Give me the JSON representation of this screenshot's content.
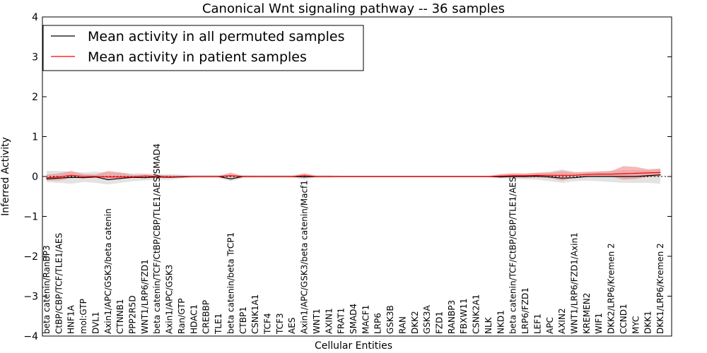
{
  "chart_data": {
    "type": "line",
    "title": "Canonical Wnt signaling pathway -- 36 samples",
    "xlabel": "Cellular Entities",
    "ylabel": "Inferred Activity",
    "ylim": [
      -4,
      4
    ],
    "yticks": [
      "−4",
      "−3",
      "−2",
      "−1",
      "0",
      "1",
      "2",
      "3",
      "4"
    ],
    "ytick_values": [
      -4,
      -3,
      -2,
      -1,
      0,
      1,
      2,
      3,
      4
    ],
    "legend_position": "top-left",
    "categories": [
      "beta catenin/RanBP3",
      "CtBP/CBP/TCF/TLE1/AES",
      "HNF1A",
      "mol:GTP",
      "DVL1",
      "Axin1/APC/GSK3/beta catenin",
      "CTNNB1",
      "PPP2R5D",
      "WNT1/LRP6/FZD1",
      "beta catenin/TCF/CtBP/CBP/TLE1/AES/SMAD4",
      "Axin1/APC/GSK3",
      "Ran/GTP",
      "HDAC1",
      "CREBBP",
      "TLE1",
      "beta catenin/beta TrCP1",
      "CTBP1",
      "CSNK1A1",
      "TCF4",
      "TCF3",
      "AES",
      "Axin1/APC/GSK3/beta catenin/Macf1",
      "WNT1",
      "AXIN1",
      "FRAT1",
      "SMAD4",
      "MACF1",
      "LRP6",
      "GSK3B",
      "RAN",
      "DKK2",
      "GSK3A",
      "FZD1",
      "RANBP3",
      "FBXW11",
      "CSNK2A1",
      "NLK",
      "NKD1",
      "beta catenin/TCF/CtBP/CBP/TLE1/AES",
      "LRP6/FZD1",
      "LEF1",
      "APC",
      "AXIN2",
      "WNT1/LRP6/FZD1/Axin1",
      "KREMEN2",
      "WIF1",
      "DKK2/LRP6/Kremen 2",
      "CCND1",
      "MYC",
      "DKK1",
      "DKK1/LRP6/Kremen 2"
    ],
    "series": [
      {
        "name": "Mean activity in all permuted samples",
        "color": "#000000",
        "values": [
          -0.06,
          -0.04,
          -0.02,
          -0.03,
          -0.01,
          -0.08,
          -0.05,
          -0.02,
          -0.03,
          -0.01,
          -0.02,
          -0.01,
          0.0,
          0.0,
          0.0,
          -0.06,
          0.0,
          0.0,
          0.0,
          0.0,
          0.0,
          -0.01,
          0.0,
          0.0,
          0.0,
          0.0,
          0.0,
          0.0,
          0.0,
          0.0,
          0.0,
          0.0,
          0.0,
          0.0,
          0.0,
          0.0,
          0.0,
          -0.01,
          0.0,
          0.0,
          0.01,
          -0.01,
          -0.04,
          -0.03,
          0.0,
          0.0,
          0.0,
          0.0,
          0.0,
          0.02,
          0.04
        ],
        "lower": [
          -0.14,
          -0.16,
          -0.18,
          -0.14,
          -0.16,
          -0.2,
          -0.16,
          -0.12,
          -0.1,
          -0.08,
          -0.08,
          -0.05,
          -0.04,
          -0.04,
          -0.04,
          -0.12,
          -0.04,
          -0.03,
          -0.03,
          -0.03,
          -0.03,
          -0.08,
          -0.03,
          -0.03,
          -0.02,
          -0.02,
          -0.02,
          -0.02,
          -0.02,
          -0.02,
          -0.02,
          -0.02,
          -0.02,
          -0.02,
          -0.02,
          -0.02,
          -0.02,
          -0.05,
          -0.06,
          -0.07,
          -0.08,
          -0.12,
          -0.16,
          -0.12,
          -0.1,
          -0.12,
          -0.14,
          -0.16,
          -0.16,
          -0.16,
          -0.18
        ],
        "upper": [
          0.14,
          0.14,
          0.12,
          0.1,
          0.12,
          0.1,
          0.1,
          0.08,
          0.08,
          0.06,
          0.06,
          0.05,
          0.04,
          0.04,
          0.04,
          0.05,
          0.04,
          0.03,
          0.03,
          0.03,
          0.03,
          0.06,
          0.03,
          0.03,
          0.02,
          0.02,
          0.02,
          0.02,
          0.02,
          0.02,
          0.02,
          0.02,
          0.02,
          0.02,
          0.02,
          0.02,
          0.02,
          0.05,
          0.08,
          0.08,
          0.1,
          0.12,
          0.18,
          0.12,
          0.1,
          0.12,
          0.14,
          0.16,
          0.16,
          0.16,
          0.18
        ]
      },
      {
        "name": "Mean activity in patient samples",
        "color": "#ff0000",
        "values": [
          -0.03,
          -0.01,
          0.03,
          0.0,
          0.0,
          -0.01,
          -0.01,
          -0.01,
          0.01,
          0.0,
          -0.01,
          0.0,
          0.0,
          0.0,
          0.0,
          0.02,
          0.0,
          0.0,
          0.0,
          0.0,
          0.0,
          0.02,
          0.0,
          0.0,
          0.0,
          0.0,
          0.0,
          0.0,
          0.0,
          0.0,
          0.0,
          0.0,
          0.0,
          0.0,
          0.0,
          0.0,
          0.0,
          0.01,
          0.02,
          0.02,
          0.03,
          0.03,
          0.03,
          0.03,
          0.05,
          0.06,
          0.06,
          0.07,
          0.08,
          0.09,
          0.1
        ],
        "lower": [
          -0.1,
          -0.1,
          -0.04,
          -0.04,
          -0.03,
          -0.05,
          -0.05,
          -0.04,
          -0.02,
          -0.03,
          -0.03,
          -0.01,
          -0.01,
          -0.01,
          -0.01,
          -0.02,
          -0.01,
          -0.01,
          -0.01,
          -0.01,
          -0.01,
          -0.02,
          -0.01,
          -0.01,
          -0.01,
          -0.01,
          -0.01,
          -0.01,
          -0.01,
          -0.01,
          -0.01,
          -0.01,
          -0.01,
          -0.01,
          -0.01,
          -0.01,
          -0.01,
          -0.02,
          -0.02,
          -0.03,
          -0.03,
          -0.04,
          -0.1,
          -0.03,
          0.0,
          0.01,
          0.0,
          -0.08,
          -0.06,
          -0.01,
          0.0
        ],
        "upper": [
          0.05,
          0.08,
          0.14,
          0.06,
          0.05,
          0.14,
          0.1,
          0.04,
          0.05,
          0.04,
          0.03,
          0.02,
          0.01,
          0.01,
          0.01,
          0.1,
          0.01,
          0.01,
          0.01,
          0.01,
          0.01,
          0.08,
          0.01,
          0.01,
          0.01,
          0.01,
          0.01,
          0.01,
          0.01,
          0.01,
          0.01,
          0.01,
          0.01,
          0.01,
          0.01,
          0.01,
          0.01,
          0.06,
          0.08,
          0.07,
          0.09,
          0.1,
          0.14,
          0.1,
          0.12,
          0.13,
          0.14,
          0.26,
          0.24,
          0.18,
          0.2
        ]
      }
    ]
  }
}
